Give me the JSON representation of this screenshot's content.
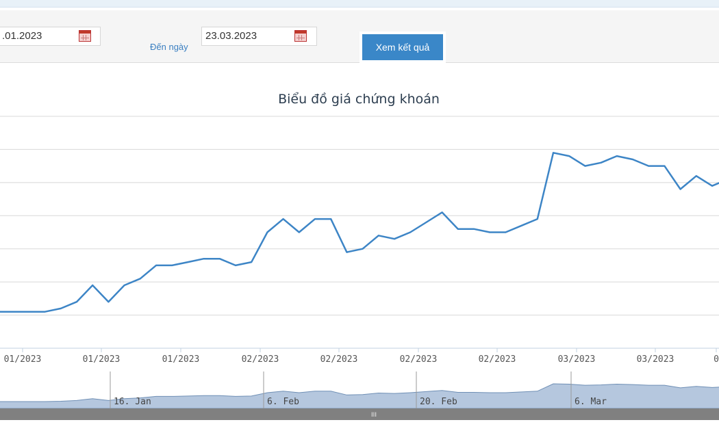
{
  "filter": {
    "from_value": ".01.2023",
    "to_label": "Đến ngày",
    "to_value": "23.03.2023",
    "submit_label": "Xem kết quả"
  },
  "chart_data": {
    "type": "line",
    "title": "Biểu đồ giá chứng khoán",
    "color": "#3d85c6",
    "navigator_fill": "#b5c7de",
    "grid": true,
    "xlabel": "",
    "ylabel": "",
    "ylim": [
      0,
      7
    ],
    "x_tick_labels": [
      "01/2023",
      "01/2023",
      "01/2023",
      "02/2023",
      "02/2023",
      "02/2023",
      "02/2023",
      "03/2023",
      "03/2023",
      "0"
    ],
    "values": [
      1.1,
      1.1,
      1.1,
      1.1,
      1.2,
      1.4,
      1.9,
      1.4,
      1.9,
      2.1,
      2.5,
      2.5,
      2.6,
      2.7,
      2.7,
      2.5,
      2.6,
      3.5,
      3.9,
      3.5,
      3.9,
      3.9,
      2.9,
      3.0,
      3.4,
      3.3,
      3.5,
      3.8,
      4.1,
      3.6,
      3.6,
      3.5,
      3.5,
      3.7,
      3.9,
      5.9,
      5.8,
      5.5,
      5.6,
      5.8,
      5.7,
      5.5,
      5.5,
      4.8,
      5.2,
      4.9,
      5.1
    ],
    "navigator": {
      "labels": [
        "16. Jan",
        "6. Feb",
        "20. Feb",
        "6. Mar"
      ],
      "scrollbar_grip": "III"
    }
  }
}
